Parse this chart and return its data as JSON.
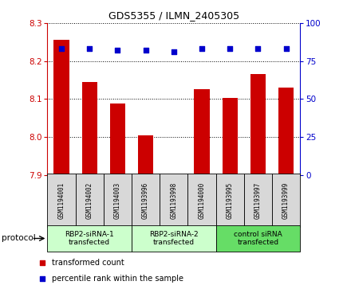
{
  "title": "GDS5355 / ILMN_2405305",
  "samples": [
    "GSM1194001",
    "GSM1194002",
    "GSM1194003",
    "GSM1193996",
    "GSM1193998",
    "GSM1194000",
    "GSM1193995",
    "GSM1193997",
    "GSM1193999"
  ],
  "bar_values": [
    8.255,
    8.145,
    8.088,
    8.005,
    7.902,
    8.125,
    8.103,
    8.165,
    8.13
  ],
  "dot_values": [
    83,
    83,
    82,
    82,
    81,
    83,
    83,
    83,
    83
  ],
  "ylim_left": [
    7.9,
    8.3
  ],
  "ylim_right": [
    0,
    100
  ],
  "yticks_left": [
    7.9,
    8.0,
    8.1,
    8.2,
    8.3
  ],
  "yticks_right": [
    0,
    25,
    50,
    75,
    100
  ],
  "bar_color": "#cc0000",
  "dot_color": "#0000cc",
  "group_labels": [
    "RBP2-siRNA-1\ntransfected",
    "RBP2-siRNA-2\ntransfected",
    "control siRNA\ntransfected"
  ],
  "group_starts": [
    0,
    3,
    6
  ],
  "group_ends": [
    3,
    6,
    9
  ],
  "group_colors": [
    "#ccffcc",
    "#ccffcc",
    "#66dd66"
  ],
  "sample_box_color": "#d8d8d8",
  "protocol_label": "protocol",
  "legend_bar_label": "transformed count",
  "legend_dot_label": "percentile rank within the sample"
}
